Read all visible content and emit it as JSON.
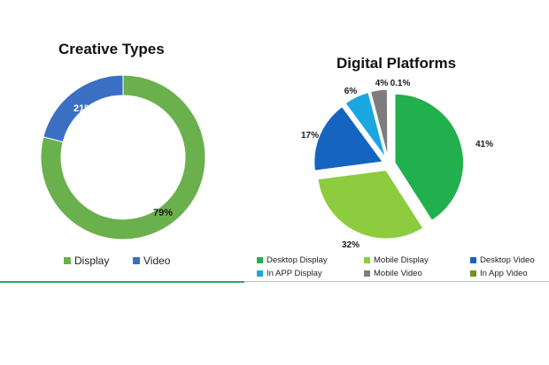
{
  "colors": {
    "display_green": "#6ab04c",
    "video_blue": "#3b6fc4",
    "desktop_display": "#22b04e",
    "mobile_display": "#8ccc3e",
    "desktop_video": "#1565c0",
    "in_app_display": "#1aa7e0",
    "mobile_video": "#7d7d7d",
    "in_app_video": "#6e8f2a",
    "divider": "#2ea85a"
  },
  "chart_data": [
    {
      "type": "pie",
      "variant": "donut",
      "title": "Creative Types",
      "slices": [
        {
          "label": "Display",
          "value": 79,
          "display": "79%",
          "color": "#6ab04c"
        },
        {
          "label": "Video",
          "value": 21,
          "display": "21%",
          "color": "#3b6fc4"
        }
      ],
      "legend": [
        {
          "label": "Display",
          "color": "#6ab04c"
        },
        {
          "label": "Video",
          "color": "#3b6fc4"
        }
      ],
      "legend_position": "bottom"
    },
    {
      "type": "pie",
      "title": "Digital Platforms",
      "slices": [
        {
          "label": "Desktop Display",
          "value": 41,
          "display": "41%",
          "color": "#22b04e"
        },
        {
          "label": "Mobile Display",
          "value": 32,
          "display": "32%",
          "color": "#8ccc3e"
        },
        {
          "label": "Desktop Video",
          "value": 17,
          "display": "17%",
          "color": "#1565c0"
        },
        {
          "label": "In APP Display",
          "value": 6,
          "display": "6%",
          "color": "#1aa7e0"
        },
        {
          "label": "Mobile Video",
          "value": 4,
          "display": "4%",
          "color": "#7d7d7d"
        },
        {
          "label": "In App Video",
          "value": 0.1,
          "display": "0.1%",
          "color": "#6e8f2a"
        }
      ],
      "legend": [
        {
          "label": "Desktop Display",
          "color": "#22b04e"
        },
        {
          "label": "Mobile Display",
          "color": "#8ccc3e"
        },
        {
          "label": "Desktop Video",
          "color": "#1565c0"
        },
        {
          "label": "In APP Display",
          "color": "#1aa7e0"
        },
        {
          "label": "Mobile Video",
          "color": "#7d7d7d"
        },
        {
          "label": "In App Video",
          "color": "#6e8f2a"
        }
      ],
      "legend_position": "bottom"
    }
  ]
}
